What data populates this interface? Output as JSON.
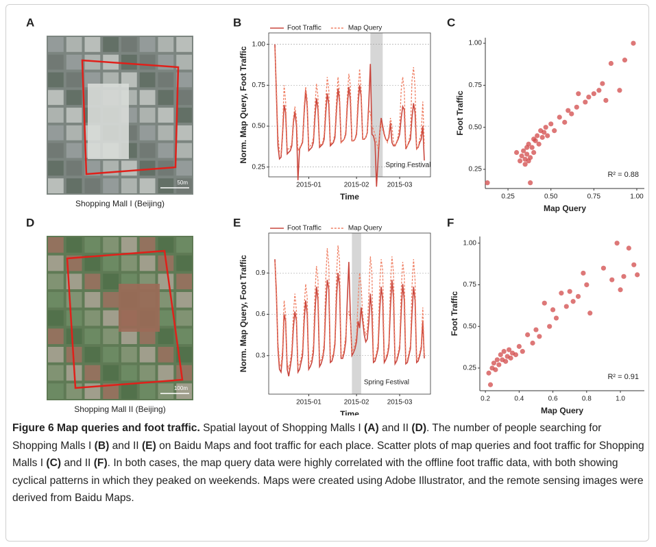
{
  "maps": [
    {
      "panel": "A",
      "caption": "Shopping Mall I (Beijing)",
      "scale": "50m"
    },
    {
      "panel": "D",
      "caption": "Shopping Mall II (Beijing)",
      "scale": "100m"
    }
  ],
  "chart_data": [
    {
      "type": "line",
      "panel": "B",
      "xlabel": "Time",
      "ylabel": "Norm. Map Query, Foot Traffic",
      "x": [
        0,
        1,
        2,
        3,
        4,
        5,
        6,
        7,
        8,
        9,
        10,
        11,
        12,
        13,
        14,
        15,
        16,
        17,
        18,
        19,
        20,
        21,
        22,
        23,
        24,
        25,
        26,
        27,
        28,
        29,
        30,
        31,
        32,
        33,
        34,
        35,
        36,
        37,
        38,
        39,
        40,
        41,
        42,
        43,
        44,
        45,
        46,
        47,
        48,
        49,
        50,
        51,
        52,
        53,
        54,
        55,
        56,
        57,
        58,
        59,
        60,
        61,
        62,
        63,
        64,
        65,
        66,
        67,
        68,
        69,
        70,
        71,
        72,
        73,
        74,
        75,
        76,
        77,
        78,
        79,
        80,
        81,
        82,
        83,
        84,
        85,
        86,
        87,
        88,
        89,
        90,
        91,
        92,
        93,
        94,
        95,
        96,
        97
      ],
      "series": [
        {
          "name": "Foot Traffic",
          "color": "#c9463d",
          "dash": false,
          "values": [
            1.0,
            0.7,
            0.38,
            0.3,
            0.31,
            0.45,
            0.63,
            0.58,
            0.33,
            0.34,
            0.35,
            0.38,
            0.52,
            0.59,
            0.5,
            0.17,
            0.36,
            0.38,
            0.4,
            0.58,
            0.72,
            0.62,
            0.35,
            0.36,
            0.37,
            0.4,
            0.55,
            0.67,
            0.6,
            0.37,
            0.38,
            0.39,
            0.42,
            0.58,
            0.7,
            0.63,
            0.38,
            0.39,
            0.4,
            0.43,
            0.6,
            0.73,
            0.65,
            0.4,
            0.41,
            0.42,
            0.45,
            0.62,
            0.74,
            0.66,
            0.41,
            0.41,
            0.42,
            0.45,
            0.63,
            0.75,
            0.68,
            0.42,
            0.42,
            0.43,
            0.46,
            0.65,
            0.88,
            0.45,
            0.44,
            0.4,
            0.13,
            0.3,
            0.45,
            0.55,
            0.5,
            0.45,
            0.42,
            0.41,
            0.43,
            0.52,
            0.4,
            0.38,
            0.38,
            0.4,
            0.42,
            0.45,
            0.55,
            0.62,
            0.6,
            0.36,
            0.38,
            0.4,
            0.42,
            0.55,
            0.64,
            0.58,
            0.36,
            0.37,
            0.4,
            0.42,
            0.5,
            0.29
          ]
        },
        {
          "name": "Map Query",
          "color": "#ef7f63",
          "dash": true,
          "values": [
            0.98,
            0.75,
            0.45,
            0.34,
            0.33,
            0.48,
            0.75,
            0.65,
            0.36,
            0.36,
            0.37,
            0.4,
            0.55,
            0.62,
            0.55,
            0.35,
            0.37,
            0.38,
            0.42,
            0.62,
            0.74,
            0.66,
            0.37,
            0.38,
            0.39,
            0.43,
            0.62,
            0.76,
            0.68,
            0.38,
            0.39,
            0.4,
            0.45,
            0.65,
            0.8,
            0.72,
            0.39,
            0.4,
            0.41,
            0.46,
            0.66,
            0.8,
            0.7,
            0.4,
            0.41,
            0.42,
            0.47,
            0.68,
            0.82,
            0.75,
            0.41,
            0.41,
            0.42,
            0.47,
            0.7,
            0.85,
            0.72,
            0.42,
            0.42,
            0.43,
            0.46,
            0.6,
            0.58,
            0.5,
            0.48,
            0.45,
            0.4,
            0.36,
            0.45,
            0.52,
            0.48,
            0.44,
            0.42,
            0.4,
            0.45,
            0.55,
            0.5,
            0.4,
            0.38,
            0.4,
            0.44,
            0.5,
            0.72,
            0.8,
            0.72,
            0.37,
            0.38,
            0.41,
            0.46,
            0.78,
            0.86,
            0.74,
            0.36,
            0.37,
            0.42,
            0.46,
            0.65,
            0.38
          ]
        }
      ],
      "xlim": [
        -4,
        101
      ],
      "ylim": [
        0.19,
        1.07
      ],
      "xticks": [
        {
          "value": 22,
          "label": "2015-01"
        },
        {
          "value": 53,
          "label": "2015-02"
        },
        {
          "value": 81,
          "label": "2015-03"
        }
      ],
      "yticks": [
        {
          "value": 1,
          "label": "1.00"
        },
        0.75,
        {
          "value": 0.5,
          "label": "0.50"
        },
        0.25
      ],
      "grid": true,
      "legend": "top",
      "shade": {
        "range": [
          62,
          70
        ],
        "label": "Spring Festival"
      }
    },
    {
      "type": "scatter",
      "panel": "C",
      "xlabel": "Map Query",
      "ylabel": "Foot Traffic",
      "color": "#d24a4a",
      "annotation": "R² = 0.88",
      "x": [
        0.13,
        0.3,
        0.32,
        0.33,
        0.34,
        0.35,
        0.35,
        0.36,
        0.37,
        0.38,
        0.38,
        0.39,
        0.4,
        0.4,
        0.41,
        0.42,
        0.43,
        0.44,
        0.45,
        0.46,
        0.47,
        0.48,
        0.5,
        0.52,
        0.55,
        0.58,
        0.6,
        0.62,
        0.65,
        0.66,
        0.7,
        0.72,
        0.75,
        0.78,
        0.8,
        0.82,
        0.85,
        0.9,
        0.93,
        0.98,
        0.37,
        0.36
      ],
      "y": [
        0.17,
        0.35,
        0.3,
        0.33,
        0.36,
        0.31,
        0.28,
        0.34,
        0.4,
        0.17,
        0.32,
        0.38,
        0.43,
        0.35,
        0.42,
        0.45,
        0.4,
        0.48,
        0.44,
        0.47,
        0.5,
        0.45,
        0.52,
        0.48,
        0.56,
        0.53,
        0.6,
        0.58,
        0.62,
        0.7,
        0.65,
        0.68,
        0.7,
        0.72,
        0.76,
        0.66,
        0.88,
        0.72,
        0.9,
        1.0,
        0.3,
        0.38
      ],
      "xlim": [
        0.118,
        1.044
      ],
      "ylim": [
        0.136,
        1.033
      ],
      "xticks": [
        0.25,
        {
          "value": 0.5,
          "label": "0.50"
        },
        0.75,
        {
          "value": 1,
          "label": "1.00"
        }
      ],
      "yticks": [
        0.25,
        {
          "value": 0.5,
          "label": "0.50"
        },
        0.75,
        {
          "value": 1,
          "label": "1.00"
        }
      ]
    },
    {
      "type": "line",
      "panel": "E",
      "xlabel": "Time",
      "ylabel": "Norm. Map Query, Foot Traffic",
      "x": [
        0,
        1,
        2,
        3,
        4,
        5,
        6,
        7,
        8,
        9,
        10,
        11,
        12,
        13,
        14,
        15,
        16,
        17,
        18,
        19,
        20,
        21,
        22,
        23,
        24,
        25,
        26,
        27,
        28,
        29,
        30,
        31,
        32,
        33,
        34,
        35,
        36,
        37,
        38,
        39,
        40,
        41,
        42,
        43,
        44,
        45,
        46,
        47,
        48,
        49,
        50,
        51,
        52,
        53,
        54,
        55,
        56,
        57,
        58,
        59,
        60,
        61,
        62,
        63,
        64,
        65,
        66,
        67,
        68,
        69,
        70,
        71,
        72,
        73,
        74,
        75,
        76,
        77,
        78,
        79,
        80,
        81,
        82,
        83,
        84,
        85,
        86,
        87,
        88,
        89,
        90,
        91,
        92,
        93,
        94,
        95,
        96,
        97
      ],
      "series": [
        {
          "name": "Foot Traffic",
          "color": "#c9463d",
          "dash": false,
          "values": [
            1.0,
            0.75,
            0.35,
            0.2,
            0.18,
            0.3,
            0.6,
            0.55,
            0.2,
            0.15,
            0.22,
            0.3,
            0.5,
            0.62,
            0.55,
            0.18,
            0.2,
            0.25,
            0.3,
            0.55,
            0.7,
            0.6,
            0.2,
            0.22,
            0.25,
            0.32,
            0.6,
            0.8,
            0.7,
            0.22,
            0.24,
            0.28,
            0.35,
            0.65,
            0.85,
            0.78,
            0.25,
            0.26,
            0.3,
            0.38,
            0.72,
            0.9,
            0.8,
            0.28,
            0.28,
            0.32,
            0.4,
            0.7,
            0.98,
            0.6,
            0.3,
            0.32,
            0.35,
            0.4,
            0.55,
            0.5,
            0.65,
            0.55,
            0.45,
            0.4,
            0.42,
            0.55,
            0.75,
            0.6,
            0.25,
            0.26,
            0.3,
            0.35,
            0.62,
            0.8,
            0.7,
            0.25,
            0.27,
            0.3,
            0.36,
            0.65,
            0.85,
            0.72,
            0.24,
            0.26,
            0.3,
            0.35,
            0.62,
            0.82,
            0.7,
            0.24,
            0.25,
            0.3,
            0.35,
            0.6,
            0.8,
            0.7,
            0.25,
            0.26,
            0.3,
            0.35,
            0.55,
            0.28
          ]
        },
        {
          "name": "Map Query",
          "color": "#ef7f63",
          "dash": true,
          "values": [
            0.98,
            0.8,
            0.4,
            0.25,
            0.22,
            0.35,
            0.7,
            0.6,
            0.25,
            0.2,
            0.26,
            0.35,
            0.6,
            0.75,
            0.62,
            0.22,
            0.24,
            0.28,
            0.35,
            0.65,
            0.82,
            0.72,
            0.24,
            0.25,
            0.28,
            0.38,
            0.75,
            0.95,
            0.85,
            0.26,
            0.27,
            0.3,
            0.4,
            0.85,
            1.08,
            0.95,
            0.28,
            0.29,
            0.32,
            0.42,
            0.88,
            1.1,
            0.98,
            0.3,
            0.3,
            0.35,
            0.45,
            0.6,
            0.62,
            0.55,
            0.32,
            0.35,
            0.38,
            0.45,
            0.7,
            0.9,
            0.8,
            0.6,
            0.5,
            0.45,
            0.48,
            0.75,
            1.02,
            0.9,
            0.28,
            0.28,
            0.32,
            0.4,
            0.8,
            1.0,
            0.92,
            0.28,
            0.29,
            0.32,
            0.4,
            0.82,
            1.02,
            0.9,
            0.27,
            0.28,
            0.32,
            0.38,
            0.78,
            0.98,
            0.88,
            0.26,
            0.27,
            0.32,
            0.38,
            0.8,
            1.0,
            0.85,
            0.27,
            0.28,
            0.32,
            0.38,
            0.65,
            0.3
          ]
        }
      ],
      "xlim": [
        -4,
        101
      ],
      "ylim": [
        0.02,
        1.19
      ],
      "xticks": [
        {
          "value": 22,
          "label": "2015-01"
        },
        {
          "value": 53,
          "label": "2015-02"
        },
        {
          "value": 81,
          "label": "2015-03"
        }
      ],
      "yticks": [
        0.9,
        0.6,
        0.3
      ],
      "grid": true,
      "legend": "top",
      "shade": {
        "range": [
          50,
          56
        ],
        "label": "Spring Festival"
      }
    },
    {
      "type": "scatter",
      "panel": "F",
      "xlabel": "Map Query",
      "ylabel": "Foot Traffic",
      "color": "#d24a4a",
      "annotation": "R² = 0.91",
      "x": [
        0.22,
        0.23,
        0.24,
        0.25,
        0.26,
        0.27,
        0.28,
        0.29,
        0.3,
        0.31,
        0.32,
        0.33,
        0.34,
        0.35,
        0.36,
        0.38,
        0.4,
        0.42,
        0.45,
        0.48,
        0.5,
        0.52,
        0.55,
        0.58,
        0.6,
        0.62,
        0.65,
        0.68,
        0.7,
        0.72,
        0.75,
        0.78,
        0.8,
        0.82,
        0.9,
        0.95,
        0.98,
        1.0,
        1.02,
        1.05,
        1.08,
        1.1
      ],
      "y": [
        0.22,
        0.15,
        0.25,
        0.28,
        0.24,
        0.3,
        0.27,
        0.33,
        0.3,
        0.35,
        0.29,
        0.32,
        0.36,
        0.31,
        0.34,
        0.33,
        0.38,
        0.35,
        0.45,
        0.4,
        0.48,
        0.44,
        0.64,
        0.5,
        0.6,
        0.55,
        0.7,
        0.62,
        0.71,
        0.65,
        0.68,
        0.82,
        0.75,
        0.58,
        0.85,
        0.78,
        1.0,
        0.72,
        0.8,
        0.97,
        0.87,
        0.81
      ],
      "xlim": [
        0.167,
        1.142
      ],
      "ylim": [
        0.114,
        1.04
      ],
      "xticks": [
        0.2,
        0.4,
        0.6,
        0.8,
        {
          "value": 1,
          "label": "1.0"
        }
      ],
      "yticks": [
        0.25,
        {
          "value": 0.5,
          "label": "0.50"
        },
        0.75,
        {
          "value": 1,
          "label": "1.00"
        }
      ]
    }
  ],
  "caption": [
    {
      "text": "Figure 6  Map queries and foot traffic.",
      "bold": true
    },
    {
      "text": " Spatial layout of Shopping Malls I ",
      "bold": false
    },
    {
      "text": "(A)",
      "bold": true
    },
    {
      "text": " and II ",
      "bold": false
    },
    {
      "text": "(D)",
      "bold": true
    },
    {
      "text": ". The number of people searching for Shopping Malls I ",
      "bold": false
    },
    {
      "text": "(B)",
      "bold": true
    },
    {
      "text": " and II ",
      "bold": false
    },
    {
      "text": "(E)",
      "bold": true
    },
    {
      "text": " on Baidu Maps and foot traffic for each place. Scatter plots of map queries and foot traffic for Shopping Malls I ",
      "bold": false
    },
    {
      "text": "(C)",
      "bold": true
    },
    {
      "text": " and II ",
      "bold": false
    },
    {
      "text": "(F)",
      "bold": true
    },
    {
      "text": ". In both cases, the map query data were highly correlated with the offline foot traffic data, with both showing cyclical patterns in which they peaked on weekends. Maps were created using Adobe Illustrator, and the remote sensing images were derived from Baidu Maps.",
      "bold": false
    }
  ]
}
